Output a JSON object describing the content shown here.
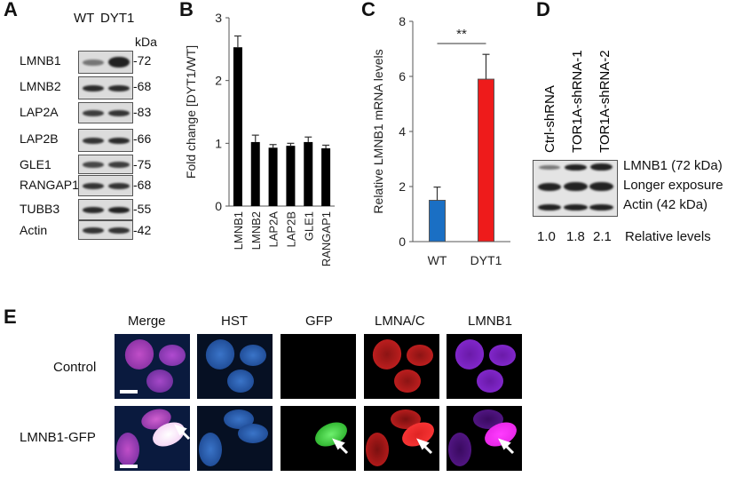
{
  "panel_letters": {
    "a": "A",
    "b": "B",
    "c": "C",
    "d": "D",
    "e": "E"
  },
  "panelA": {
    "lanes": [
      "WT",
      "DYT1"
    ],
    "kda_header": "kDa",
    "rows": [
      {
        "protein": "LMNB1",
        "kda": "-72"
      },
      {
        "protein": "LMNB2",
        "kda": "-68"
      },
      {
        "protein": "LAP2A",
        "kda": "-83"
      },
      {
        "protein": "LAP2B",
        "kda": "-66"
      },
      {
        "protein": "GLE1",
        "kda": "-75"
      },
      {
        "protein": "RANGAP1",
        "kda": "-68"
      },
      {
        "protein": "TUBB3",
        "kda": "-55"
      },
      {
        "protein": "Actin",
        "kda": "-42"
      }
    ]
  },
  "panelD": {
    "lanes": [
      "Ctrl-shRNA",
      "TOR1A-shRNA-1",
      "TOR1A-shRNA-2"
    ],
    "bands": [
      "LMNB1 (72 kDa)",
      "Longer exposure",
      "Actin (42 kDa)"
    ],
    "relative_values": [
      "1.0",
      "1.8",
      "2.1"
    ],
    "relative_label": "Relative levels"
  },
  "panelE": {
    "columns": [
      "Merge",
      "HST",
      "GFP",
      "LMNA/C",
      "LMNB1"
    ],
    "rows": [
      "Control",
      "LMNB1-GFP"
    ]
  },
  "chart_data": [
    {
      "id": "B",
      "type": "bar",
      "categories": [
        "LMNB1",
        "LMNB2",
        "LAP2A",
        "LAP2B",
        "GLE1",
        "RANGAP1"
      ],
      "values": [
        2.53,
        1.02,
        0.93,
        0.96,
        1.02,
        0.92
      ],
      "errors": [
        0.18,
        0.11,
        0.05,
        0.04,
        0.08,
        0.05
      ],
      "ylabel": "Fold change [DYT1/WT]",
      "ylim": [
        0,
        3
      ],
      "yticks": [
        "0",
        "1",
        "2",
        "3"
      ],
      "colors": [
        "#000000"
      ]
    },
    {
      "id": "C",
      "type": "bar",
      "categories": [
        "WT",
        "DYT1"
      ],
      "values": [
        1.5,
        5.9
      ],
      "errors": [
        0.48,
        0.9
      ],
      "ylabel": "Relative LMNB1 mRNA levels",
      "ylim": [
        0,
        8
      ],
      "yticks": [
        "0",
        "2",
        "4",
        "6",
        "8"
      ],
      "colors": [
        "#1a6fc4",
        "#ee1b1b"
      ],
      "annotation": "**"
    }
  ]
}
